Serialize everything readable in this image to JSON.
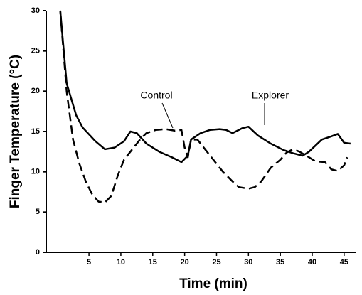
{
  "chart_data": {
    "type": "line",
    "xlabel": "Time (min)",
    "ylabel": "Finger Temperature (°C)",
    "annotations": [
      "Control",
      "Explorer"
    ],
    "xlim": [
      -1.7,
      46.8
    ],
    "ylim": [
      0,
      30
    ],
    "xticks": [
      5,
      10,
      15,
      20,
      25,
      30,
      35,
      40,
      45
    ],
    "yticks": [
      0,
      5,
      10,
      15,
      20,
      25,
      30
    ],
    "series": [
      {
        "name": "Explorer",
        "color": "#000000",
        "dash": false,
        "x": [
          0.5,
          1.5,
          3,
          4,
          6,
          7.5,
          9,
          10.5,
          11.5,
          12.5,
          14,
          16,
          18,
          19.5,
          20.5,
          21,
          22.5,
          24,
          25.5,
          26.5,
          27.5,
          29,
          30,
          31.5,
          33.5,
          35.5,
          37,
          38.5,
          39.5,
          41.5,
          43,
          44,
          45,
          46
        ],
        "values": [
          30,
          21,
          17,
          15.5,
          13.8,
          12.8,
          13,
          13.8,
          15,
          14.8,
          13.5,
          12.5,
          11.8,
          11.2,
          12,
          14,
          14.8,
          15.2,
          15.3,
          15.2,
          14.8,
          15.4,
          15.6,
          14.5,
          13.5,
          12.7,
          12.3,
          12,
          12.5,
          14,
          14.4,
          14.7,
          13.6,
          13.5
        ]
      },
      {
        "name": "Control",
        "color": "#000000",
        "dash": true,
        "x": [
          0.5,
          1.5,
          2.5,
          3.5,
          4.5,
          5.5,
          6.5,
          7.5,
          8.5,
          9.5,
          10.5,
          12,
          13,
          14,
          15.5,
          17,
          18.5,
          19.5,
          20,
          20.5,
          21,
          22,
          23,
          24.5,
          26,
          27.5,
          28.5,
          30,
          31,
          32,
          33.5,
          35,
          36,
          37,
          38,
          39.5,
          40.5,
          42,
          43,
          44,
          45,
          45.5
        ],
        "values": [
          30,
          20,
          14,
          11,
          8.8,
          7.2,
          6.3,
          6.2,
          7,
          9.5,
          11.5,
          13,
          14,
          14.8,
          15.2,
          15.3,
          15.1,
          15.2,
          13,
          11.8,
          14,
          14,
          13,
          11.5,
          10,
          8.8,
          8.1,
          7.9,
          8.1,
          8.8,
          10.5,
          11.5,
          12.4,
          12.8,
          12.5,
          11.8,
          11.3,
          11.2,
          10.3,
          10.1,
          10.8,
          11.8
        ]
      }
    ]
  }
}
